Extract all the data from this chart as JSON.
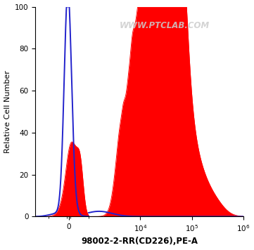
{
  "title": "",
  "xlabel": "98002-2-RR(CD226),PE-A",
  "ylabel": "Relative Cell Number",
  "ylim": [
    0,
    100
  ],
  "yticks": [
    0,
    20,
    40,
    60,
    80,
    100
  ],
  "background_color": "#ffffff",
  "plot_bg_color": "#ffffff",
  "watermark": "WWW.PTCLAB.COM",
  "red_color": "#ff0000",
  "blue_color": "#2222cc",
  "linthresh": 1000,
  "linscale": 0.35
}
